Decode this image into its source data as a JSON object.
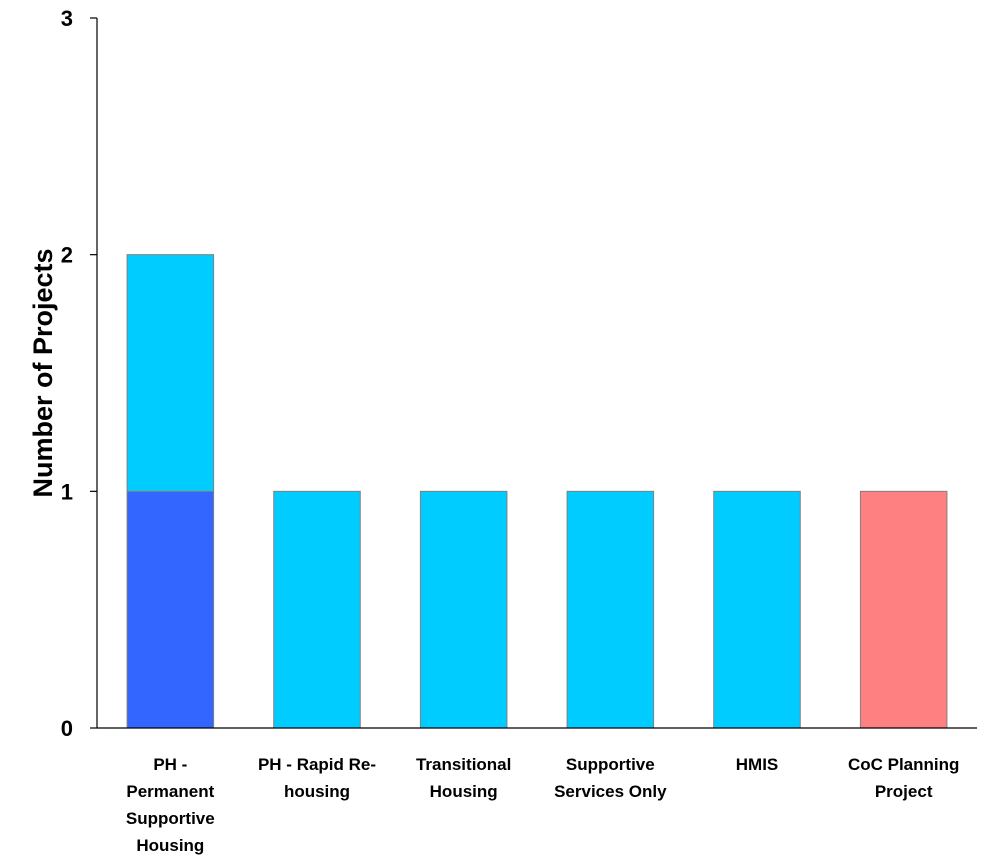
{
  "chart_data": {
    "type": "bar",
    "stacked": true,
    "categories": [
      [
        "PH -",
        "Permanent",
        "Supportive",
        "Housing"
      ],
      [
        "PH - Rapid Re-",
        "housing"
      ],
      [
        "Transitional",
        "Housing"
      ],
      [
        "Supportive",
        "Services Only"
      ],
      [
        "HMIS"
      ],
      [
        "CoC Planning",
        "Project"
      ]
    ],
    "series": [
      {
        "color": "#3366FF",
        "values": [
          1,
          0,
          0,
          0,
          0,
          0
        ]
      },
      {
        "color": "#00CCFF",
        "values": [
          1,
          1,
          1,
          1,
          1,
          0
        ]
      },
      {
        "color": "#FF8080",
        "values": [
          0,
          0,
          0,
          0,
          0,
          1
        ]
      }
    ],
    "ylabel": "Number of Projects",
    "xlabel": "",
    "ylim": [
      0,
      3
    ],
    "yticks": [
      "0",
      "1",
      "2",
      "3"
    ],
    "grid": false,
    "legend": "none"
  }
}
